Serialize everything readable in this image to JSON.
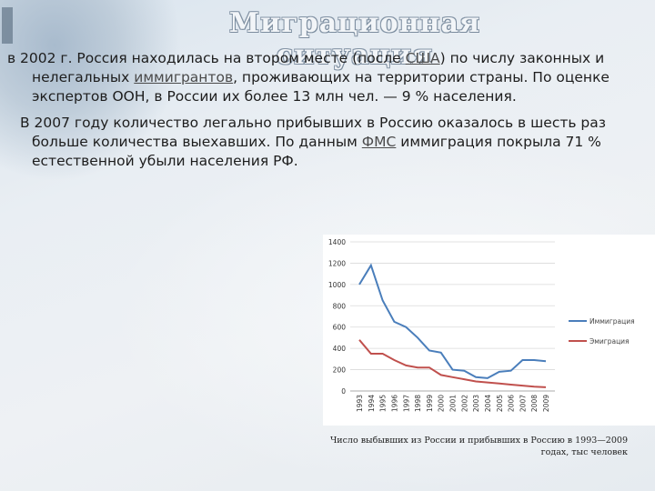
{
  "slide": {
    "title": "Миграционная ситуация"
  },
  "paragraph1": {
    "part1": "в 2002 г. Россия находилась на втором месте (после ",
    "link_usa": "США",
    "part2": ") по числу законных и",
    "line2a": "нелегальных ",
    "link_immigrants": "иммигрантов",
    "line2b": ", проживающих на территории страны. По оценке",
    "line3": "экспертов ООН, в России их более 13 млн чел. — 9 % населения."
  },
  "paragraph2": {
    "line1": "В 2007 году количество легально прибывших в Россию оказалось в шесть раз",
    "line2a": "больше количества выехавших. По данным ",
    "link_fms": "ФМС",
    "line2b": " иммиграция покрыла 71 %",
    "line3": "естественной убыли населения РФ."
  },
  "caption": {
    "line1": "Число выбывших из России и прибывших в Россию в 1993—2009",
    "line2": "годах, тыс человек"
  },
  "chart_data": {
    "type": "line",
    "x": [
      "1993",
      "1994",
      "1995",
      "1996",
      "1997",
      "1998",
      "1999",
      "2000",
      "2001",
      "2002",
      "2003",
      "2004",
      "2005",
      "2006",
      "2007",
      "2008",
      "2009"
    ],
    "series": [
      {
        "name": "Иммиграция",
        "color": "#4a7ebb",
        "values": [
          1000,
          1180,
          850,
          650,
          600,
          500,
          380,
          360,
          200,
          190,
          130,
          120,
          180,
          190,
          290,
          290,
          280
        ]
      },
      {
        "name": "Эмиграция",
        "color": "#c0504d",
        "values": [
          480,
          350,
          350,
          290,
          240,
          220,
          220,
          150,
          130,
          110,
          90,
          80,
          70,
          60,
          50,
          40,
          35
        ]
      }
    ],
    "y_ticks": [
      0,
      200,
      400,
      600,
      800,
      1000,
      1200,
      1400
    ],
    "ylim": [
      0,
      1400
    ],
    "grid": true,
    "legend": "right"
  }
}
